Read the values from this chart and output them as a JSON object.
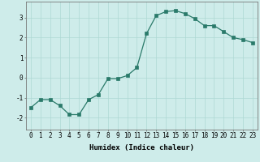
{
  "x": [
    0,
    1,
    2,
    3,
    4,
    5,
    6,
    7,
    8,
    9,
    10,
    11,
    12,
    13,
    14,
    15,
    16,
    17,
    18,
    19,
    20,
    21,
    22,
    23
  ],
  "y": [
    -1.5,
    -1.1,
    -1.1,
    -1.4,
    -1.85,
    -1.85,
    -1.1,
    -0.85,
    -0.05,
    -0.05,
    0.1,
    0.5,
    2.2,
    3.1,
    3.3,
    3.35,
    3.2,
    2.95,
    2.6,
    2.6,
    2.3,
    2.0,
    1.9,
    1.75
  ],
  "line_color": "#2a7a6a",
  "marker": "s",
  "marker_size": 2.2,
  "background_color": "#ceecea",
  "grid_color": "#aed8d4",
  "xlabel": "Humidex (Indice chaleur)",
  "xlim": [
    -0.5,
    23.5
  ],
  "ylim": [
    -2.6,
    3.8
  ],
  "yticks": [
    -2,
    -1,
    0,
    1,
    2,
    3
  ],
  "xticks": [
    0,
    1,
    2,
    3,
    4,
    5,
    6,
    7,
    8,
    9,
    10,
    11,
    12,
    13,
    14,
    15,
    16,
    17,
    18,
    19,
    20,
    21,
    22,
    23
  ],
  "label_fontsize": 6.5,
  "tick_fontsize": 5.5
}
